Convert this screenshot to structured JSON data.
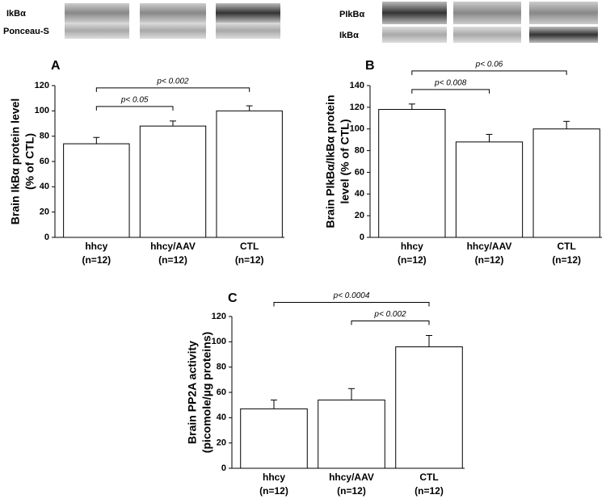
{
  "blots": {
    "left_labels": [
      "IkBα",
      "Ponceau-S"
    ],
    "right_labels": [
      "PIkBα",
      "IkBα"
    ]
  },
  "chart_data": [
    {
      "type": "bar",
      "panel": "A",
      "ylabel": [
        "Brain IkBα protein level",
        "(% of CTL)"
      ],
      "categories": [
        "hhcy",
        "hhcy/AAV",
        "CTL"
      ],
      "category_sublabels": [
        "(n=12)",
        "(n=12)",
        "(n=12)"
      ],
      "values": [
        74,
        88,
        100
      ],
      "errors": [
        5,
        4,
        4
      ],
      "color": "#ffffff",
      "ylim": [
        0,
        120
      ],
      "yticks": [
        0,
        20,
        40,
        60,
        80,
        100,
        120
      ],
      "annotations": [
        {
          "text": "p< 0.05",
          "from": 0,
          "to": 1
        },
        {
          "text": "p< 0.002",
          "from": 0,
          "to": 2
        }
      ]
    },
    {
      "type": "bar",
      "panel": "B",
      "ylabel": [
        "Brain PIkBα/IkBα protein",
        "level (% of CTL)"
      ],
      "categories": [
        "hhcy",
        "hhcy/AAV",
        "CTL"
      ],
      "category_sublabels": [
        "(n=12)",
        "(n=12)",
        "(n=12)"
      ],
      "values": [
        118,
        88,
        100
      ],
      "errors": [
        5,
        7,
        7
      ],
      "color": "#ffffff",
      "ylim": [
        0,
        140
      ],
      "yticks": [
        0,
        20,
        40,
        60,
        80,
        100,
        120,
        140
      ],
      "annotations": [
        {
          "text": "p< 0.008",
          "from": 0,
          "to": 1
        },
        {
          "text": "p< 0.06",
          "from": 0,
          "to": 2
        }
      ]
    },
    {
      "type": "bar",
      "panel": "C",
      "ylabel": [
        "Brain PP2A activity",
        "(picomole/µg proteins)"
      ],
      "categories": [
        "hhcy",
        "hhcy/AAV",
        "CTL"
      ],
      "category_sublabels": [
        "(n=12)",
        "(n=12)",
        "(n=12)"
      ],
      "values": [
        47,
        54,
        96
      ],
      "errors": [
        7,
        9,
        9
      ],
      "color": "#ffffff",
      "ylim": [
        0,
        120
      ],
      "yticks": [
        0,
        20,
        40,
        60,
        80,
        100,
        120
      ],
      "annotations": [
        {
          "text": "p< 0.002",
          "from": 1,
          "to": 2
        },
        {
          "text": "p< 0.0004",
          "from": 0,
          "to": 2
        }
      ]
    }
  ]
}
